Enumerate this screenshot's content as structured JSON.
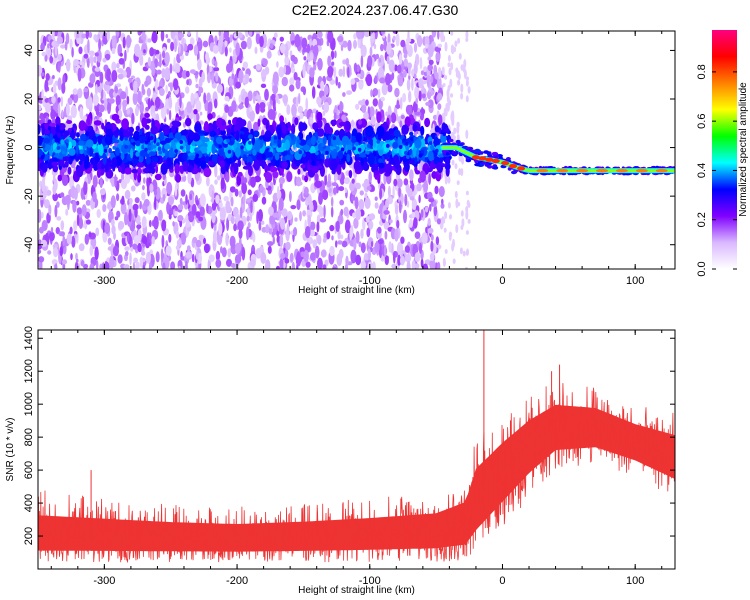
{
  "title": "C2E2.2024.237.06.47.G30",
  "colors": {
    "signal": "#ee3333",
    "accent_cyan": "#00e5ff",
    "accent_red": "#ff0000"
  },
  "chart_data": [
    {
      "type": "heatmap",
      "title": "C2E2.2024.237.06.47.G30",
      "xlabel": "Height of straight line (km)",
      "ylabel": "Frequency (Hz)",
      "xlim": [
        -350,
        130
      ],
      "ylim": [
        -50,
        48
      ],
      "x_ticks": [
        -300,
        -200,
        -100,
        0,
        100
      ],
      "y_ticks": [
        -40,
        -20,
        0,
        20,
        40
      ],
      "colorbar": {
        "label": "Normalized spectral amplitude",
        "range": [
          0.0,
          0.97
        ],
        "ticks": [
          0.0,
          0.2,
          0.4,
          0.6,
          0.8
        ],
        "colormap": [
          "#ffffff",
          "#d9b8ff",
          "#8000ff",
          "#0000ff",
          "#00ffff",
          "#00ff00",
          "#ffff00",
          "#ff8000",
          "#ff0000",
          "#ff0080"
        ]
      },
      "trace_center": [
        {
          "x": -350,
          "y": 0
        },
        {
          "x": -45,
          "y": 0
        },
        {
          "x": -35,
          "y": 0
        },
        {
          "x": -20,
          "y": -4
        },
        {
          "x": 0,
          "y": -6
        },
        {
          "x": 10,
          "y": -8
        },
        {
          "x": 20,
          "y": -9.5
        },
        {
          "x": 60,
          "y": -9.5
        },
        {
          "x": 130,
          "y": -9.5
        }
      ]
    },
    {
      "type": "line",
      "xlabel": "Height of straight line (km)",
      "ylabel": "SNR (10 * v/v)",
      "xlim": [
        -350,
        130
      ],
      "ylim": [
        0,
        1450
      ],
      "x_ticks": [
        -300,
        -200,
        -100,
        0,
        100
      ],
      "y_ticks": [
        200,
        400,
        600,
        800,
        1000,
        1200,
        1400
      ],
      "series": [
        {
          "envelope": [
            {
              "x": -350,
              "low": 40,
              "mid": 200,
              "high": 480
            },
            {
              "x": -300,
              "low": 40,
              "mid": 195,
              "high": 440
            },
            {
              "x": -250,
              "low": 40,
              "mid": 190,
              "high": 400
            },
            {
              "x": -200,
              "low": 40,
              "mid": 185,
              "high": 380
            },
            {
              "x": -150,
              "low": 40,
              "mid": 195,
              "high": 400
            },
            {
              "x": -100,
              "low": 40,
              "mid": 210,
              "high": 430
            },
            {
              "x": -50,
              "low": 40,
              "mid": 230,
              "high": 470
            },
            {
              "x": -28,
              "low": 40,
              "mid": 280,
              "high": 560
            },
            {
              "x": -20,
              "low": 60,
              "mid": 450,
              "high": 800
            },
            {
              "x": 0,
              "low": 220,
              "mid": 640,
              "high": 920
            },
            {
              "x": 20,
              "low": 420,
              "mid": 780,
              "high": 1050
            },
            {
              "x": 40,
              "low": 600,
              "mid": 870,
              "high": 1150
            },
            {
              "x": 70,
              "low": 640,
              "mid": 860,
              "high": 1120
            },
            {
              "x": 100,
              "low": 560,
              "mid": 780,
              "high": 1000
            },
            {
              "x": 130,
              "low": 420,
              "mid": 700,
              "high": 950
            }
          ],
          "spikes": [
            {
              "x": -310,
              "y": 600
            },
            {
              "x": -14,
              "y": 1450
            },
            {
              "x": 43,
              "y": 1240
            },
            {
              "x": 37,
              "y": 1200
            }
          ]
        }
      ]
    }
  ]
}
